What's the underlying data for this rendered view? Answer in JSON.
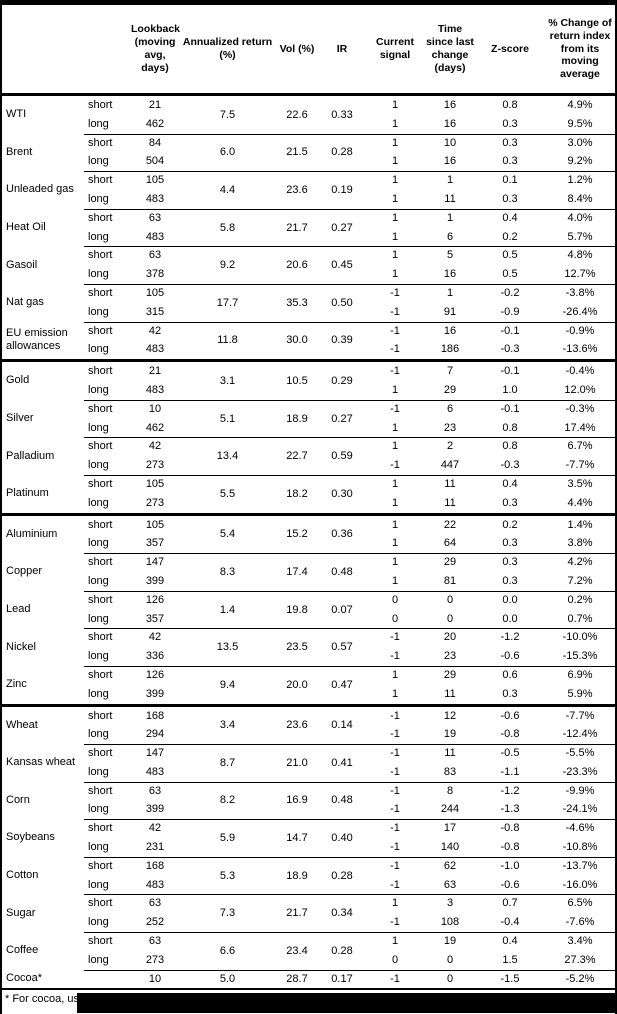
{
  "table": {
    "columns": [
      "Lookback (moving avg, days)",
      "Annualized return (%)",
      "Vol (%)",
      "IR",
      "Current signal",
      "Time since last change (days)",
      "Z-score",
      "% Change of return index from its moving average"
    ],
    "row_labels": [
      "short",
      "long"
    ],
    "commodities": [
      {
        "name": "WTI",
        "ann": "7.5",
        "vol": "22.6",
        "ir": "0.33",
        "rows": [
          {
            "pos": "short",
            "lookback": "21",
            "signal": "1",
            "time": "16",
            "z": "0.8",
            "pct": "4.9%"
          },
          {
            "pos": "long",
            "lookback": "462",
            "signal": "1",
            "time": "16",
            "z": "0.3",
            "pct": "9.5%"
          }
        ]
      },
      {
        "name": "Brent",
        "ann": "6.0",
        "vol": "21.5",
        "ir": "0.28",
        "rows": [
          {
            "pos": "short",
            "lookback": "84",
            "signal": "1",
            "time": "10",
            "z": "0.3",
            "pct": "3.0%"
          },
          {
            "pos": "long",
            "lookback": "504",
            "signal": "1",
            "time": "16",
            "z": "0.3",
            "pct": "9.2%"
          }
        ]
      },
      {
        "name": "Unleaded gas",
        "ann": "4.4",
        "vol": "23.6",
        "ir": "0.19",
        "rows": [
          {
            "pos": "short",
            "lookback": "105",
            "signal": "1",
            "time": "1",
            "z": "0.1",
            "pct": "1.2%"
          },
          {
            "pos": "long",
            "lookback": "483",
            "signal": "1",
            "time": "11",
            "z": "0.3",
            "pct": "8.4%"
          }
        ]
      },
      {
        "name": "Heat Oil",
        "ann": "5.8",
        "vol": "21.7",
        "ir": "0.27",
        "rows": [
          {
            "pos": "short",
            "lookback": "63",
            "signal": "1",
            "time": "1",
            "z": "0.4",
            "pct": "4.0%"
          },
          {
            "pos": "long",
            "lookback": "483",
            "signal": "1",
            "time": "6",
            "z": "0.2",
            "pct": "5.7%"
          }
        ]
      },
      {
        "name": "Gasoil",
        "ann": "9.2",
        "vol": "20.6",
        "ir": "0.45",
        "rows": [
          {
            "pos": "short",
            "lookback": "63",
            "signal": "1",
            "time": "5",
            "z": "0.5",
            "pct": "4.8%"
          },
          {
            "pos": "long",
            "lookback": "378",
            "signal": "1",
            "time": "16",
            "z": "0.5",
            "pct": "12.7%"
          }
        ]
      },
      {
        "name": "Nat gas",
        "ann": "17.7",
        "vol": "35.3",
        "ir": "0.50",
        "rows": [
          {
            "pos": "short",
            "lookback": "105",
            "signal": "-1",
            "time": "1",
            "z": "-0.2",
            "pct": "-3.8%"
          },
          {
            "pos": "long",
            "lookback": "315",
            "signal": "-1",
            "time": "91",
            "z": "-0.9",
            "pct": "-26.4%"
          }
        ]
      },
      {
        "name": "EU emission allowances",
        "ann": "11.8",
        "vol": "30.0",
        "ir": "0.39",
        "rows": [
          {
            "pos": "short",
            "lookback": "42",
            "signal": "-1",
            "time": "16",
            "z": "-0.1",
            "pct": "-0.9%"
          },
          {
            "pos": "long",
            "lookback": "483",
            "signal": "-1",
            "time": "186",
            "z": "-0.3",
            "pct": "-13.6%"
          }
        ]
      },
      {
        "name": "Gold",
        "section_break": true,
        "ann": "3.1",
        "vol": "10.5",
        "ir": "0.29",
        "rows": [
          {
            "pos": "short",
            "lookback": "21",
            "signal": "-1",
            "time": "7",
            "z": "-0.1",
            "pct": "-0.4%"
          },
          {
            "pos": "long",
            "lookback": "483",
            "signal": "1",
            "time": "29",
            "z": "1.0",
            "pct": "12.0%"
          }
        ]
      },
      {
        "name": "Silver",
        "ann": "5.1",
        "vol": "18.9",
        "ir": "0.27",
        "rows": [
          {
            "pos": "short",
            "lookback": "10",
            "signal": "-1",
            "time": "6",
            "z": "-0.1",
            "pct": "-0.3%"
          },
          {
            "pos": "long",
            "lookback": "462",
            "signal": "1",
            "time": "23",
            "z": "0.8",
            "pct": "17.4%"
          }
        ]
      },
      {
        "name": "Palladium",
        "ann": "13.4",
        "vol": "22.7",
        "ir": "0.59",
        "rows": [
          {
            "pos": "short",
            "lookback": "42",
            "signal": "1",
            "time": "2",
            "z": "0.8",
            "pct": "6.7%"
          },
          {
            "pos": "long",
            "lookback": "273",
            "signal": "-1",
            "time": "447",
            "z": "-0.3",
            "pct": "-7.7%"
          }
        ]
      },
      {
        "name": "Platinum",
        "ann": "5.5",
        "vol": "18.2",
        "ir": "0.30",
        "rows": [
          {
            "pos": "short",
            "lookback": "105",
            "signal": "1",
            "time": "11",
            "z": "0.4",
            "pct": "3.5%"
          },
          {
            "pos": "long",
            "lookback": "273",
            "signal": "1",
            "time": "11",
            "z": "0.3",
            "pct": "4.4%"
          }
        ]
      },
      {
        "name": "Aluminium",
        "section_break": true,
        "ann": "5.4",
        "vol": "15.2",
        "ir": "0.36",
        "rows": [
          {
            "pos": "short",
            "lookback": "105",
            "signal": "1",
            "time": "22",
            "z": "0.2",
            "pct": "1.4%"
          },
          {
            "pos": "long",
            "lookback": "357",
            "signal": "1",
            "time": "64",
            "z": "0.3",
            "pct": "3.8%"
          }
        ]
      },
      {
        "name": "Copper",
        "ann": "8.3",
        "vol": "17.4",
        "ir": "0.48",
        "rows": [
          {
            "pos": "short",
            "lookback": "147",
            "signal": "1",
            "time": "29",
            "z": "0.3",
            "pct": "4.2%"
          },
          {
            "pos": "long",
            "lookback": "399",
            "signal": "1",
            "time": "81",
            "z": "0.3",
            "pct": "7.2%"
          }
        ]
      },
      {
        "name": "Lead",
        "ann": "1.4",
        "vol": "19.8",
        "ir": "0.07",
        "rows": [
          {
            "pos": "short",
            "lookback": "126",
            "signal": "0",
            "time": "0",
            "z": "0.0",
            "pct": "0.2%"
          },
          {
            "pos": "long",
            "lookback": "357",
            "signal": "0",
            "time": "0",
            "z": "0.0",
            "pct": "0.7%"
          }
        ]
      },
      {
        "name": "Nickel",
        "ann": "13.5",
        "vol": "23.5",
        "ir": "0.57",
        "rows": [
          {
            "pos": "short",
            "lookback": "42",
            "signal": "-1",
            "time": "20",
            "z": "-1.2",
            "pct": "-10.0%"
          },
          {
            "pos": "long",
            "lookback": "336",
            "signal": "-1",
            "time": "23",
            "z": "-0.6",
            "pct": "-15.3%"
          }
        ]
      },
      {
        "name": "Zinc",
        "ann": "9.4",
        "vol": "20.0",
        "ir": "0.47",
        "rows": [
          {
            "pos": "short",
            "lookback": "126",
            "signal": "1",
            "time": "29",
            "z": "0.6",
            "pct": "6.9%"
          },
          {
            "pos": "long",
            "lookback": "399",
            "signal": "1",
            "time": "11",
            "z": "0.3",
            "pct": "5.9%"
          }
        ]
      },
      {
        "name": "Wheat",
        "section_break": true,
        "ann": "3.4",
        "vol": "23.6",
        "ir": "0.14",
        "rows": [
          {
            "pos": "short",
            "lookback": "168",
            "signal": "-1",
            "time": "12",
            "z": "-0.6",
            "pct": "-7.7%"
          },
          {
            "pos": "long",
            "lookback": "294",
            "signal": "-1",
            "time": "19",
            "z": "-0.8",
            "pct": "-12.4%"
          }
        ]
      },
      {
        "name": "Kansas wheat",
        "ann": "8.7",
        "vol": "21.0",
        "ir": "0.41",
        "rows": [
          {
            "pos": "short",
            "lookback": "147",
            "signal": "-1",
            "time": "11",
            "z": "-0.5",
            "pct": "-5.5%"
          },
          {
            "pos": "long",
            "lookback": "483",
            "signal": "-1",
            "time": "83",
            "z": "-1.1",
            "pct": "-23.3%"
          }
        ]
      },
      {
        "name": "Corn",
        "ann": "8.2",
        "vol": "16.9",
        "ir": "0.48",
        "rows": [
          {
            "pos": "short",
            "lookback": "63",
            "signal": "-1",
            "time": "8",
            "z": "-1.2",
            "pct": "-9.9%"
          },
          {
            "pos": "long",
            "lookback": "399",
            "signal": "-1",
            "time": "244",
            "z": "-1.3",
            "pct": "-24.1%"
          }
        ]
      },
      {
        "name": "Soybeans",
        "ann": "5.9",
        "vol": "14.7",
        "ir": "0.40",
        "rows": [
          {
            "pos": "short",
            "lookback": "42",
            "signal": "-1",
            "time": "17",
            "z": "-0.8",
            "pct": "-4.6%"
          },
          {
            "pos": "long",
            "lookback": "231",
            "signal": "-1",
            "time": "140",
            "z": "-0.8",
            "pct": "-10.8%"
          }
        ]
      },
      {
        "name": "Cotton",
        "ann": "5.3",
        "vol": "18.9",
        "ir": "0.28",
        "rows": [
          {
            "pos": "short",
            "lookback": "168",
            "signal": "-1",
            "time": "62",
            "z": "-1.0",
            "pct": "-13.7%"
          },
          {
            "pos": "long",
            "lookback": "483",
            "signal": "-1",
            "time": "63",
            "z": "-0.6",
            "pct": "-16.0%"
          }
        ]
      },
      {
        "name": "Sugar",
        "ann": "7.3",
        "vol": "21.7",
        "ir": "0.34",
        "rows": [
          {
            "pos": "short",
            "lookback": "63",
            "signal": "1",
            "time": "3",
            "z": "0.7",
            "pct": "6.5%"
          },
          {
            "pos": "long",
            "lookback": "252",
            "signal": "-1",
            "time": "108",
            "z": "-0.4",
            "pct": "-7.6%"
          }
        ]
      },
      {
        "name": "Coffee",
        "ann": "6.6",
        "vol": "23.4",
        "ir": "0.28",
        "rows": [
          {
            "pos": "short",
            "lookback": "63",
            "signal": "1",
            "time": "19",
            "z": "0.4",
            "pct": "3.4%"
          },
          {
            "pos": "long",
            "lookback": "273",
            "signal": "0",
            "time": "0",
            "z": "1.5",
            "pct": "27.3%"
          }
        ]
      },
      {
        "name": "Cocoa*",
        "ann": "5.0",
        "vol": "28.7",
        "ir": "0.17",
        "rows": [
          {
            "pos": "",
            "lookback": "10",
            "signal": "-1",
            "time": "0",
            "z": "-1.5",
            "pct": "-5.2%"
          }
        ]
      }
    ],
    "footnote_visible": "* For cocoa, uses o",
    "colors": {
      "text": "#000000",
      "background": "#ffffff",
      "rule": "#000000",
      "redaction": "#000000"
    }
  }
}
